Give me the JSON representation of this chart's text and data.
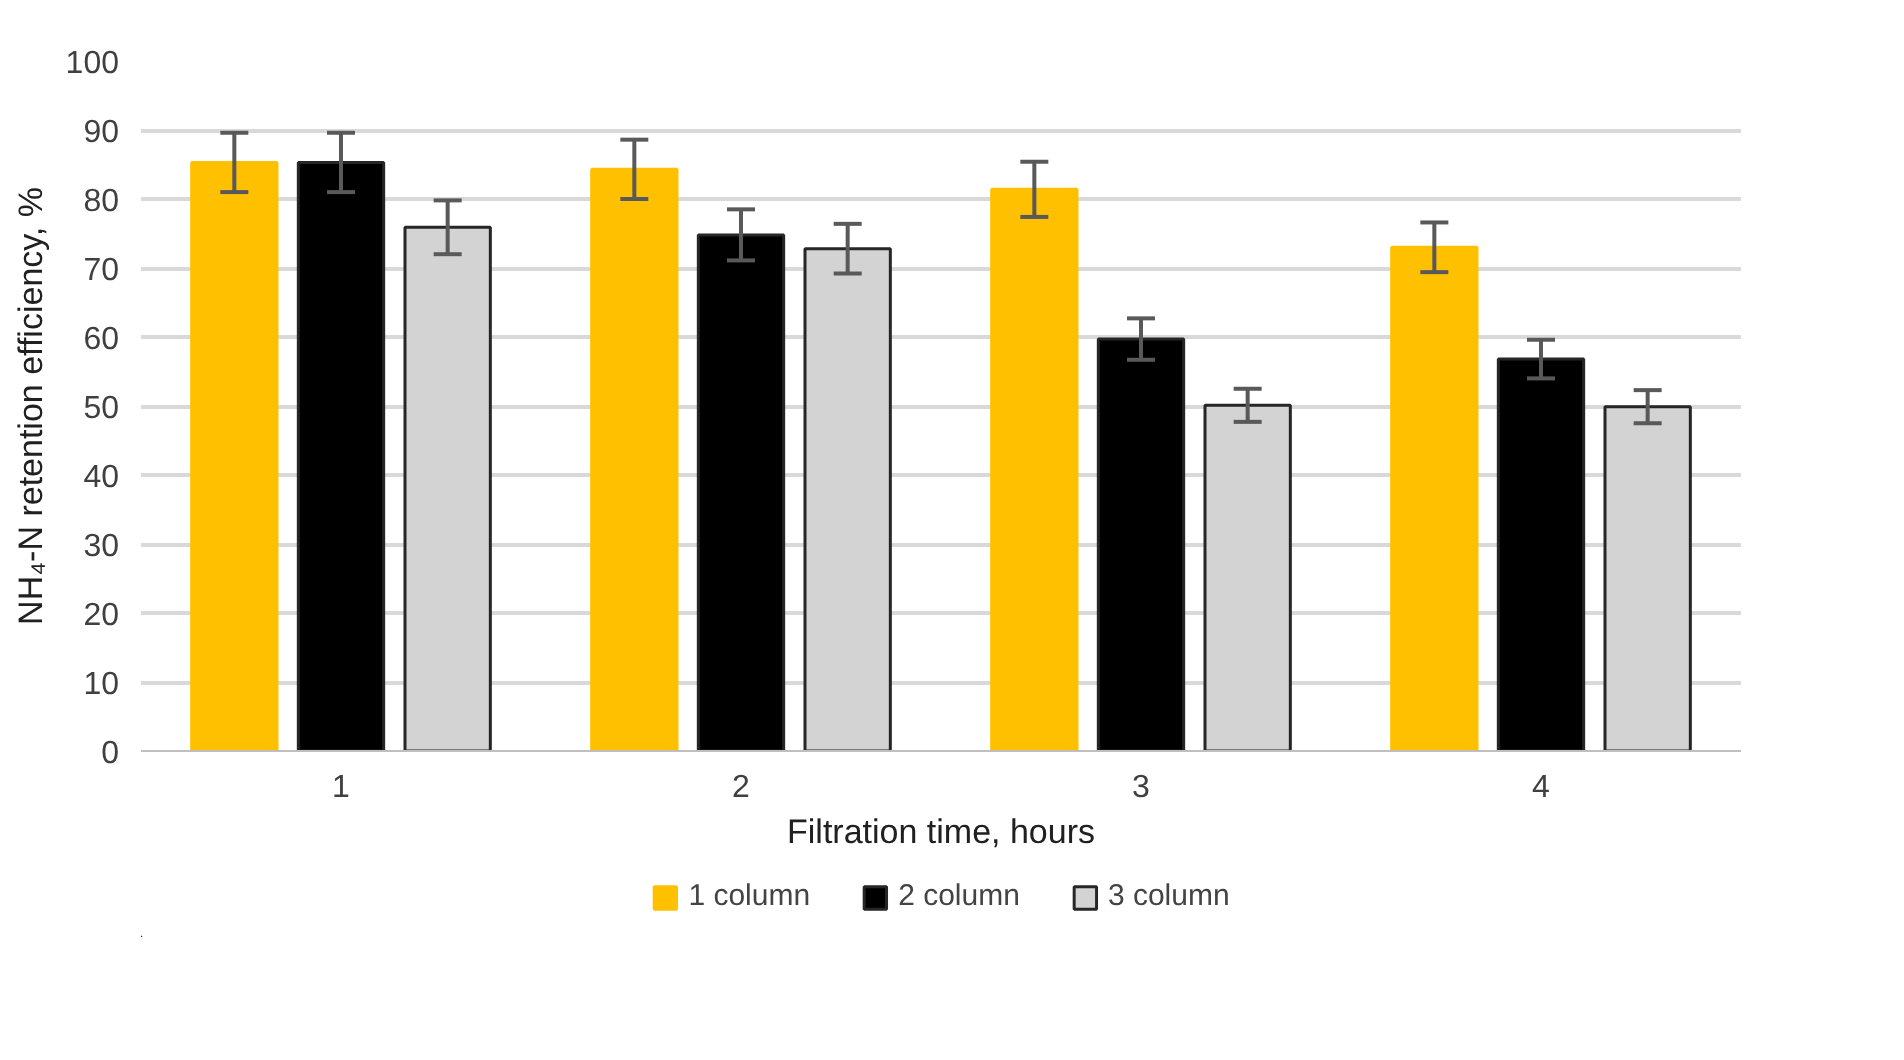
{
  "chart_data": {
    "type": "bar",
    "xlabel": "Filtration time, hours",
    "ylabel": "NH₄-N retention efficiency, %",
    "categories": [
      "1",
      "2",
      "3",
      "4"
    ],
    "series": [
      {
        "name": "1 column",
        "color": "#ffc000",
        "values": [
          85.3,
          84.3,
          81.4,
          73.0
        ],
        "errors": [
          4.3,
          4.3,
          4.0,
          3.6
        ]
      },
      {
        "name": "2 column",
        "color": "#000000",
        "values": [
          85.3,
          74.8,
          59.7,
          56.8
        ],
        "errors": [
          4.3,
          3.7,
          3.0,
          2.8
        ]
      },
      {
        "name": "3 column",
        "color": "#d3d3d3",
        "values": [
          75.9,
          72.8,
          50.1,
          49.9
        ],
        "errors": [
          3.9,
          3.6,
          2.4,
          2.4
        ]
      }
    ],
    "ylim": [
      0,
      100
    ],
    "yticks": [
      0,
      10,
      20,
      30,
      40,
      50,
      60,
      70,
      80,
      90,
      100
    ],
    "grid": "y",
    "legend": "bottom"
  }
}
